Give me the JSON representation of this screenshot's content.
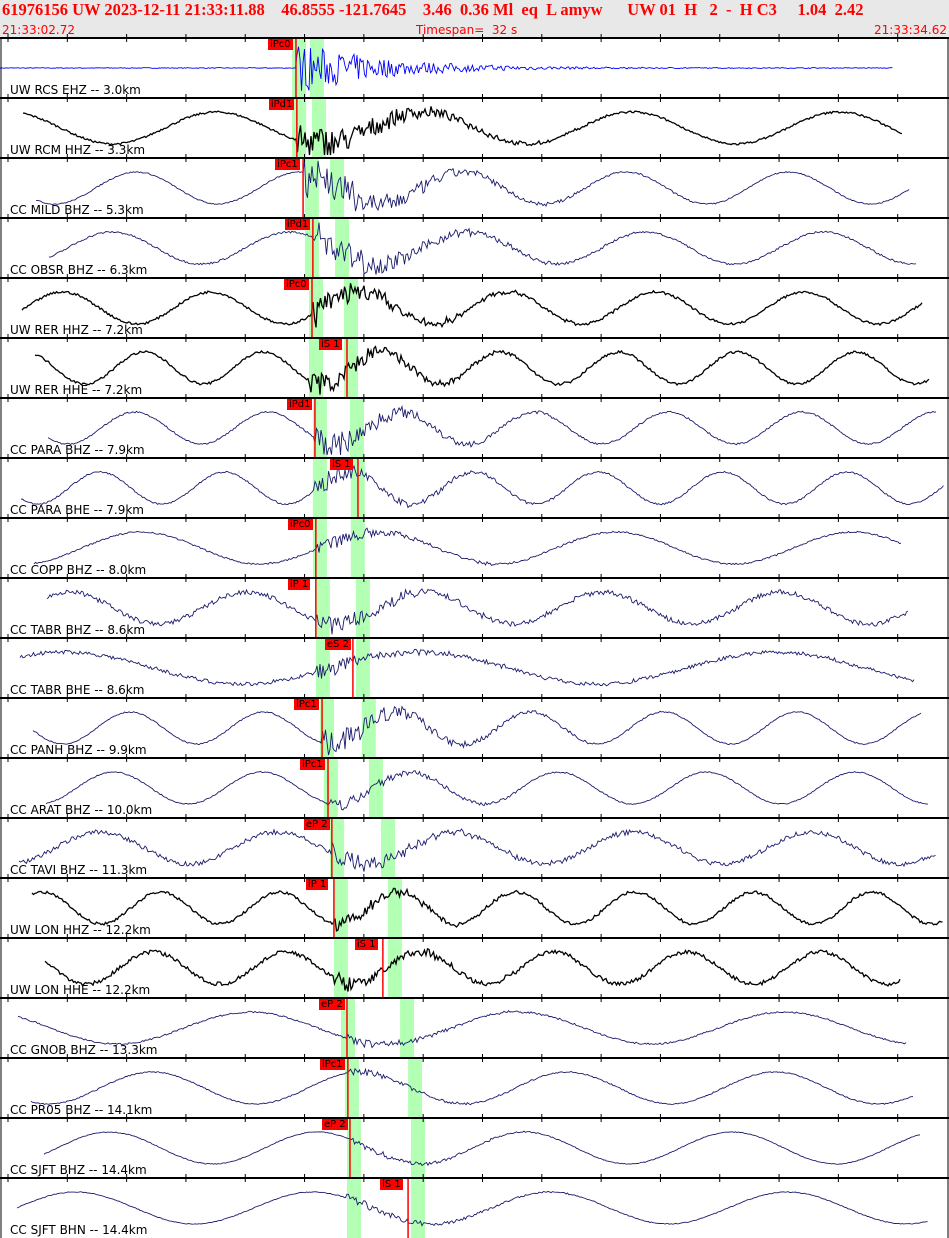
{
  "header": {
    "title": "61976156 UW 2023-12-11 21:33:11.88    46.8555 -121.7645    3.46  0.36 Ml  eq  L amyw      UW 01  H   2  -  H C3     1.04  2.42",
    "start_time": "21:33:02.72",
    "timespan": "Timespan=  32 s",
    "end_time": "21:33:34.62"
  },
  "timespan_s": 32,
  "colors": {
    "header_bg": "#e8e8e8",
    "header_text": "#ff0000",
    "pick": "#ff0000",
    "window": "#b3ffb3",
    "blue": "#0000ff",
    "black": "#000000",
    "navy": "#1c1c6e"
  },
  "traces": [
    {
      "label": "UW RCS EHZ -- 3.0km",
      "color": "blue",
      "pick": "iPc0",
      "pick_s": 9.98,
      "p_win_s": 9.85,
      "s_win_s": 10.45,
      "period": 0,
      "noise": 0.02,
      "burst": 1.0
    },
    {
      "label": "UW RCM HHZ -- 3.3km",
      "color": "black",
      "pick": "iPd1",
      "pick_s": 10.01,
      "p_win_s": 9.85,
      "s_win_s": 10.52,
      "period": 7,
      "noise": 0.05,
      "burst": 0.9
    },
    {
      "label": "CC MILD BHZ -- 5.3km",
      "color": "navy",
      "pick": "iPc1",
      "pick_s": 10.22,
      "p_win_s": 10.28,
      "s_win_s": 11.13,
      "period": 5.5,
      "noise": 0.03,
      "burst": 1.0
    },
    {
      "label": "CC OBSR BHZ -- 6.3km",
      "color": "navy",
      "pick": "iPd1",
      "pick_s": 10.55,
      "p_win_s": 10.28,
      "s_win_s": 11.3,
      "period": 6,
      "noise": 0.05,
      "burst": 0.8
    },
    {
      "label": "UW RER HHZ -- 7.2km",
      "color": "black",
      "pick": "iPc0",
      "pick_s": 10.52,
      "p_win_s": 10.42,
      "s_win_s": 11.6,
      "period": 5,
      "noise": 0.06,
      "burst": 0.6
    },
    {
      "label": "UW RER HHE -- 7.2km",
      "color": "black",
      "pick": "iS 1",
      "pick_s": 11.7,
      "p_win_s": 10.42,
      "s_win_s": 11.6,
      "period": 4,
      "noise": 0.06,
      "burst": 0.5
    },
    {
      "label": "CC PARA BHZ -- 7.9km",
      "color": "navy",
      "pick": "iPd1",
      "pick_s": 10.62,
      "p_win_s": 10.55,
      "s_win_s": 11.8,
      "period": 4.5,
      "noise": 0.04,
      "burst": 0.6
    },
    {
      "label": "CC PARA BHE -- 7.9km",
      "color": "navy",
      "pick": "iS 1",
      "pick_s": 12.07,
      "p_win_s": 10.55,
      "s_win_s": 11.83,
      "period": 4.2,
      "noise": 0.04,
      "burst": 0.4
    },
    {
      "label": "CC COPP BHZ -- 8.0km",
      "color": "navy",
      "pick": "iPc0",
      "pick_s": 10.65,
      "p_win_s": 10.55,
      "s_win_s": 11.83,
      "period": 8,
      "noise": 0.04,
      "burst": 0.3
    },
    {
      "label": "CC TABR BHZ -- 8.6km",
      "color": "navy",
      "pick": "iP 1",
      "pick_s": 10.65,
      "p_win_s": 10.65,
      "s_win_s": 12.0,
      "period": 6,
      "noise": 0.12,
      "burst": 0.4
    },
    {
      "label": "CC TABR BHE -- 8.6km",
      "color": "navy",
      "pick": "eS 2",
      "pick_s": 11.9,
      "p_win_s": 10.65,
      "s_win_s": 12.0,
      "period": 12,
      "noise": 0.1,
      "burst": 0.3
    },
    {
      "label": "CC PANH BHZ -- 9.9km",
      "color": "navy",
      "pick": "iPc1",
      "pick_s": 10.86,
      "p_win_s": 10.79,
      "s_win_s": 12.2,
      "period": 4.5,
      "noise": 0.03,
      "burst": 0.6
    },
    {
      "label": "CC ARAT BHZ -- 10.0km",
      "color": "navy",
      "pick": "iPc1",
      "pick_s": 11.06,
      "p_win_s": 10.92,
      "s_win_s": 12.44,
      "period": 5,
      "noise": 0.03,
      "burst": 0.3
    },
    {
      "label": "CC TAVI BHZ -- 11.3km",
      "color": "navy",
      "pick": "eP 2",
      "pick_s": 11.19,
      "p_win_s": 11.13,
      "s_win_s": 12.85,
      "period": 6,
      "noise": 0.12,
      "burst": 0.4
    },
    {
      "label": "UW LON HHZ -- 12.2km",
      "color": "black",
      "pick": "iP 1",
      "pick_s": 11.26,
      "p_win_s": 11.26,
      "s_win_s": 13.08,
      "period": 4,
      "noise": 0.07,
      "burst": 0.3
    },
    {
      "label": "UW LON HHE -- 12.2km",
      "color": "black",
      "pick": "iS 1",
      "pick_s": 12.91,
      "p_win_s": 11.26,
      "s_win_s": 13.08,
      "period": 4.5,
      "noise": 0.1,
      "burst": 0.3
    },
    {
      "label": "CC GNOB BHZ -- 13.3km",
      "color": "navy",
      "pick": "eP 2",
      "pick_s": 11.7,
      "p_win_s": 11.5,
      "s_win_s": 13.49,
      "period": 9,
      "noise": 0.04,
      "burst": 0.2
    },
    {
      "label": "CC PR05 BHZ -- 14.1km",
      "color": "navy",
      "pick": "iPc1",
      "pick_s": 11.73,
      "p_win_s": 11.63,
      "s_win_s": 13.76,
      "period": 7,
      "noise": 0.03,
      "burst": 0.15
    },
    {
      "label": "CC SJFT BHZ -- 14.4km",
      "color": "navy",
      "pick": "eP 2",
      "pick_s": 11.8,
      "p_win_s": 11.7,
      "s_win_s": 13.86,
      "period": 7,
      "noise": 0.02,
      "burst": 0.15
    },
    {
      "label": "CC SJFT BHN -- 14.4km",
      "color": "navy",
      "pick": "iS 1",
      "pick_s": 13.76,
      "p_win_s": 11.7,
      "s_win_s": 13.86,
      "period": 8,
      "noise": 0.02,
      "burst": 0.2
    }
  ]
}
